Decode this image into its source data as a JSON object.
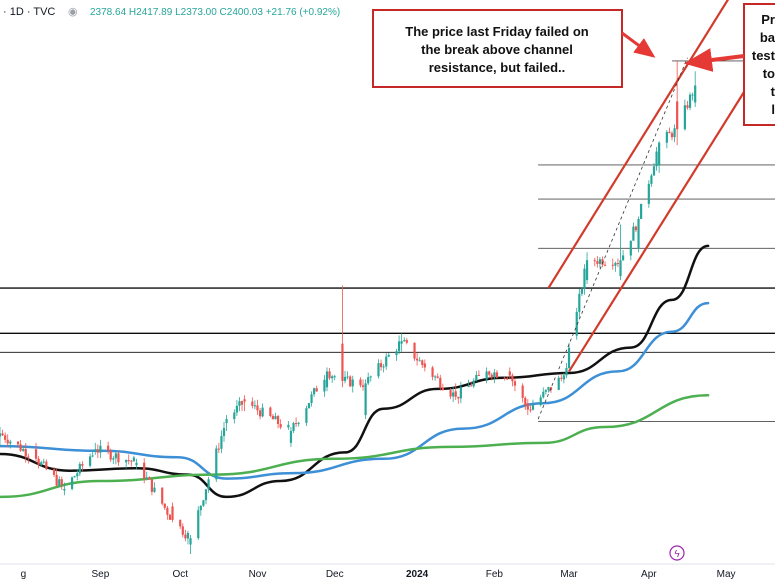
{
  "header": {
    "symbol_tail": "· 1D · TVC",
    "ohlc_text": "2378.64 H2417.89 L2373.00 C2400.03 +21.76 (+0.92%)"
  },
  "annotations": {
    "callout_main": [
      "The price last Friday failed on",
      "the break above channel",
      "resistance, but failed.."
    ],
    "callout_right": [
      "Pr",
      "ba",
      "test",
      "to",
      "t",
      "l"
    ]
  },
  "colors": {
    "up": "#26a69a",
    "down": "#ef5350",
    "ma_black": "#111111",
    "ma_blue": "#3d8fd6",
    "ma_green": "#4caf50",
    "channel": "#d23b2a",
    "callout_border": "#c62828",
    "arrow": "#e53935",
    "level_line": "#000000"
  },
  "chart_data": {
    "type": "candlestick",
    "x_tick_labels": [
      "g",
      "Sep",
      "Oct",
      "Nov",
      "Dec",
      "2024",
      "Feb",
      "Mar",
      "Apr",
      "May"
    ],
    "x_tick_dates": [
      "2023-08-01",
      "2023-09-01",
      "2023-10-02",
      "2023-11-01",
      "2023-12-01",
      "2024-01-02",
      "2024-02-01",
      "2024-03-01",
      "2024-04-01",
      "2024-05-01"
    ],
    "ylim": [
      1800,
      2480
    ],
    "x_range": [
      "2023-07-24",
      "2024-05-20"
    ],
    "ohlc": [
      {
        "date": "2023-07-24",
        "o": 1958,
        "h": 1970,
        "l": 1945,
        "c": 1962
      },
      {
        "date": "2023-08-07",
        "o": 1942,
        "h": 1950,
        "l": 1925,
        "c": 1930
      },
      {
        "date": "2023-08-18",
        "o": 1890,
        "h": 1900,
        "l": 1884,
        "c": 1892
      },
      {
        "date": "2023-08-30",
        "o": 1940,
        "h": 1950,
        "l": 1935,
        "c": 1942
      },
      {
        "date": "2023-09-15",
        "o": 1922,
        "h": 1930,
        "l": 1916,
        "c": 1925
      },
      {
        "date": "2023-09-29",
        "o": 1870,
        "h": 1875,
        "l": 1850,
        "c": 1853
      },
      {
        "date": "2023-10-06",
        "o": 1822,
        "h": 1834,
        "l": 1810,
        "c": 1830
      },
      {
        "date": "2023-10-20",
        "o": 1975,
        "h": 1985,
        "l": 1965,
        "c": 1980
      },
      {
        "date": "2023-10-27",
        "o": 2005,
        "h": 2010,
        "l": 1990,
        "c": 2002
      },
      {
        "date": "2023-11-14",
        "o": 1950,
        "h": 1970,
        "l": 1945,
        "c": 1965
      },
      {
        "date": "2023-11-28",
        "o": 2020,
        "h": 2045,
        "l": 2015,
        "c": 2040
      },
      {
        "date": "2023-12-04",
        "o": 2075,
        "h": 2148,
        "l": 2020,
        "c": 2028
      },
      {
        "date": "2023-12-13",
        "o": 1985,
        "h": 2030,
        "l": 1980,
        "c": 2025
      },
      {
        "date": "2023-12-27",
        "o": 2075,
        "h": 2088,
        "l": 2065,
        "c": 2078
      },
      {
        "date": "2024-01-05",
        "o": 2050,
        "h": 2055,
        "l": 2040,
        "c": 2045
      },
      {
        "date": "2024-01-17",
        "o": 2015,
        "h": 2025,
        "l": 2004,
        "c": 2008
      },
      {
        "date": "2024-01-29",
        "o": 2030,
        "h": 2045,
        "l": 2025,
        "c": 2040
      },
      {
        "date": "2024-02-07",
        "o": 2040,
        "h": 2045,
        "l": 2030,
        "c": 2035
      },
      {
        "date": "2024-02-14",
        "o": 2000,
        "h": 2005,
        "l": 1985,
        "c": 1992
      },
      {
        "date": "2024-02-28",
        "o": 2030,
        "h": 2038,
        "l": 2025,
        "c": 2035
      },
      {
        "date": "2024-03-04",
        "o": 2085,
        "h": 2120,
        "l": 2080,
        "c": 2115
      },
      {
        "date": "2024-03-08",
        "o": 2155,
        "h": 2190,
        "l": 2150,
        "c": 2180
      },
      {
        "date": "2024-03-21",
        "o": 2160,
        "h": 2225,
        "l": 2155,
        "c": 2180
      },
      {
        "date": "2024-03-28",
        "o": 2195,
        "h": 2235,
        "l": 2190,
        "c": 2232
      },
      {
        "date": "2024-04-05",
        "o": 2300,
        "h": 2330,
        "l": 2290,
        "c": 2328
      },
      {
        "date": "2024-04-12",
        "o": 2380,
        "h": 2431,
        "l": 2325,
        "c": 2345
      },
      {
        "date": "2024-04-19",
        "o": 2378.64,
        "h": 2417.89,
        "l": 2373.0,
        "c": 2400.03
      }
    ],
    "moving_averages": [
      {
        "color_key": "ma_black",
        "points": [
          [
            "2023-07-24",
            1936
          ],
          [
            "2023-08-20",
            1915
          ],
          [
            "2023-09-15",
            1918
          ],
          [
            "2023-10-05",
            1910
          ],
          [
            "2023-10-20",
            1882
          ],
          [
            "2023-11-10",
            1902
          ],
          [
            "2023-12-05",
            1938
          ],
          [
            "2023-12-20",
            1993
          ],
          [
            "2024-01-10",
            2018
          ],
          [
            "2024-02-05",
            2032
          ],
          [
            "2024-03-01",
            2038
          ],
          [
            "2024-03-25",
            2070
          ],
          [
            "2024-04-10",
            2130
          ],
          [
            "2024-04-24",
            2198
          ]
        ]
      },
      {
        "color_key": "ma_blue",
        "points": [
          [
            "2023-07-24",
            1946
          ],
          [
            "2023-09-01",
            1940
          ],
          [
            "2023-10-01",
            1932
          ],
          [
            "2023-10-20",
            1905
          ],
          [
            "2023-11-15",
            1912
          ],
          [
            "2023-12-20",
            1930
          ],
          [
            "2024-01-20",
            1968
          ],
          [
            "2024-02-20",
            2000
          ],
          [
            "2024-03-20",
            2040
          ],
          [
            "2024-04-10",
            2090
          ],
          [
            "2024-04-24",
            2126
          ]
        ]
      },
      {
        "color_key": "ma_green",
        "points": [
          [
            "2023-07-24",
            1882
          ],
          [
            "2023-09-01",
            1902
          ],
          [
            "2023-10-15",
            1910
          ],
          [
            "2023-12-01",
            1930
          ],
          [
            "2024-01-15",
            1945
          ],
          [
            "2024-02-20",
            1950
          ],
          [
            "2024-03-15",
            1970
          ],
          [
            "2024-04-24",
            2010
          ]
        ]
      }
    ],
    "horizontal_levels": [
      {
        "value": 2300,
        "x_start": "2024-02-18",
        "x_end": "2024-05-20"
      },
      {
        "value": 2257,
        "x_start": "2024-02-18",
        "x_end": "2024-05-20"
      },
      {
        "value": 2195,
        "x_start": "2024-02-18",
        "x_end": "2024-05-20"
      },
      {
        "value": 2145,
        "x_start": "2023-07-24",
        "x_end": "2024-05-20"
      },
      {
        "value": 2088,
        "x_start": "2023-07-24",
        "x_end": "2024-05-20"
      },
      {
        "value": 2064,
        "x_start": "2023-07-24",
        "x_end": "2024-05-20"
      },
      {
        "value": 1977,
        "x_start": "2024-02-18",
        "x_end": "2024-05-20"
      },
      {
        "value": 2431,
        "x_start": "2024-04-10",
        "x_end": "2024-05-20"
      }
    ],
    "channel_lines": [
      {
        "from": [
          "2024-02-22",
          2145
        ],
        "to": [
          "2024-05-04",
          2520
        ]
      },
      {
        "from": [
          "2024-03-01",
          2040
        ],
        "to": [
          "2024-05-08",
          2392
        ]
      }
    ],
    "dashed_line": {
      "from": [
        "2024-02-18",
        1980
      ],
      "to": [
        "2024-04-16",
        2435
      ]
    }
  }
}
